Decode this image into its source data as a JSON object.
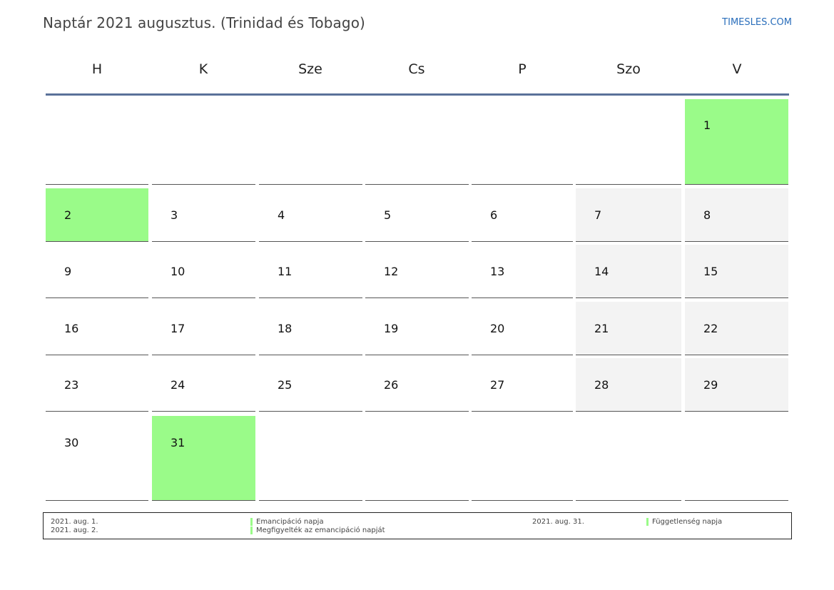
{
  "header": {
    "title": "Naptár 2021 augusztus. (Trinidad és Tobago)",
    "brand": "TIMESLES.COM"
  },
  "weekdays": [
    "H",
    "K",
    "Sze",
    "Cs",
    "P",
    "Szo",
    "V"
  ],
  "colors": {
    "holiday": "#9afb89",
    "weekend": "#f3f3f3",
    "header_rule": "#5a7199",
    "brand": "#2a6ebb"
  },
  "calendar": {
    "weeks": [
      [
        "",
        "",
        "",
        "",
        "",
        "",
        "1"
      ],
      [
        "2",
        "3",
        "4",
        "5",
        "6",
        "7",
        "8"
      ],
      [
        "9",
        "10",
        "11",
        "12",
        "13",
        "14",
        "15"
      ],
      [
        "16",
        "17",
        "18",
        "19",
        "20",
        "21",
        "22"
      ],
      [
        "23",
        "24",
        "25",
        "26",
        "27",
        "28",
        "29"
      ],
      [
        "30",
        "31",
        "",
        "",
        "",
        "",
        ""
      ]
    ],
    "holidays": [
      "1",
      "2",
      "31"
    ]
  },
  "legend": {
    "entries": [
      {
        "date": "2021. aug. 1.",
        "name": "Emancipáció napja"
      },
      {
        "date": "2021. aug. 2.",
        "name": "Megfigyelték az emancipáció napját"
      },
      {
        "date": "2021. aug. 31.",
        "name": "Függetlenség napja"
      }
    ]
  }
}
